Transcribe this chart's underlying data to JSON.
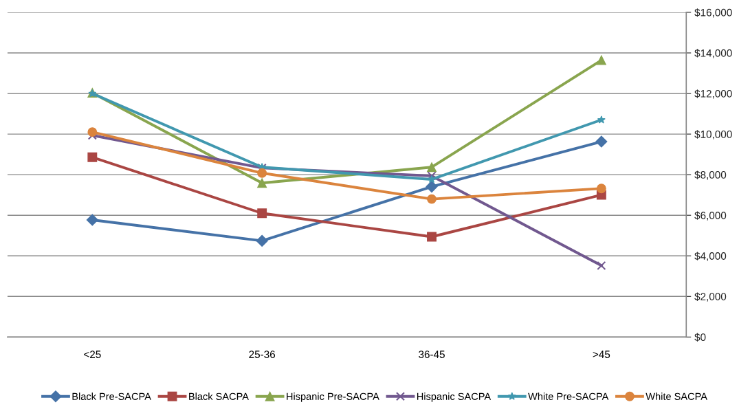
{
  "chart_data": {
    "type": "line",
    "categories": [
      "<25",
      "25-36",
      "36-45",
      ">45"
    ],
    "series": [
      {
        "name": "Black Pre-SACPA",
        "color": "#4572a7",
        "marker": "diamond",
        "values": [
          5770,
          4740,
          7410,
          9630
        ]
      },
      {
        "name": "Black SACPA",
        "color": "#aa4643",
        "marker": "square",
        "values": [
          8860,
          6100,
          4940,
          7000
        ]
      },
      {
        "name": "Hispanic Pre-SACPA",
        "color": "#89a54e",
        "marker": "triangle",
        "values": [
          12030,
          7590,
          8370,
          13640
        ]
      },
      {
        "name": "Hispanic SACPA",
        "color": "#71588f",
        "marker": "cross",
        "values": [
          9940,
          8330,
          7940,
          3520
        ]
      },
      {
        "name": "White Pre-SACPA",
        "color": "#4198af",
        "marker": "star",
        "values": [
          12000,
          8370,
          7770,
          10700
        ]
      },
      {
        "name": "White SACPA",
        "color": "#db843d",
        "marker": "circle",
        "values": [
          10100,
          8080,
          6800,
          7320
        ]
      }
    ],
    "ylim": [
      0,
      16000
    ],
    "yticks": [
      {
        "value": 0,
        "label": "$0"
      },
      {
        "value": 2000,
        "label": "$2,000"
      },
      {
        "value": 4000,
        "label": "$4,000"
      },
      {
        "value": 6000,
        "label": "$6,000"
      },
      {
        "value": 8000,
        "label": "$8,000"
      },
      {
        "value": 10000,
        "label": "$10,000"
      },
      {
        "value": 12000,
        "label": "$12,000"
      },
      {
        "value": 14000,
        "label": "$14,000"
      },
      {
        "value": 16000,
        "label": "$16,000"
      }
    ],
    "grid": "y",
    "legend": "bottom",
    "line_style": "solid"
  }
}
